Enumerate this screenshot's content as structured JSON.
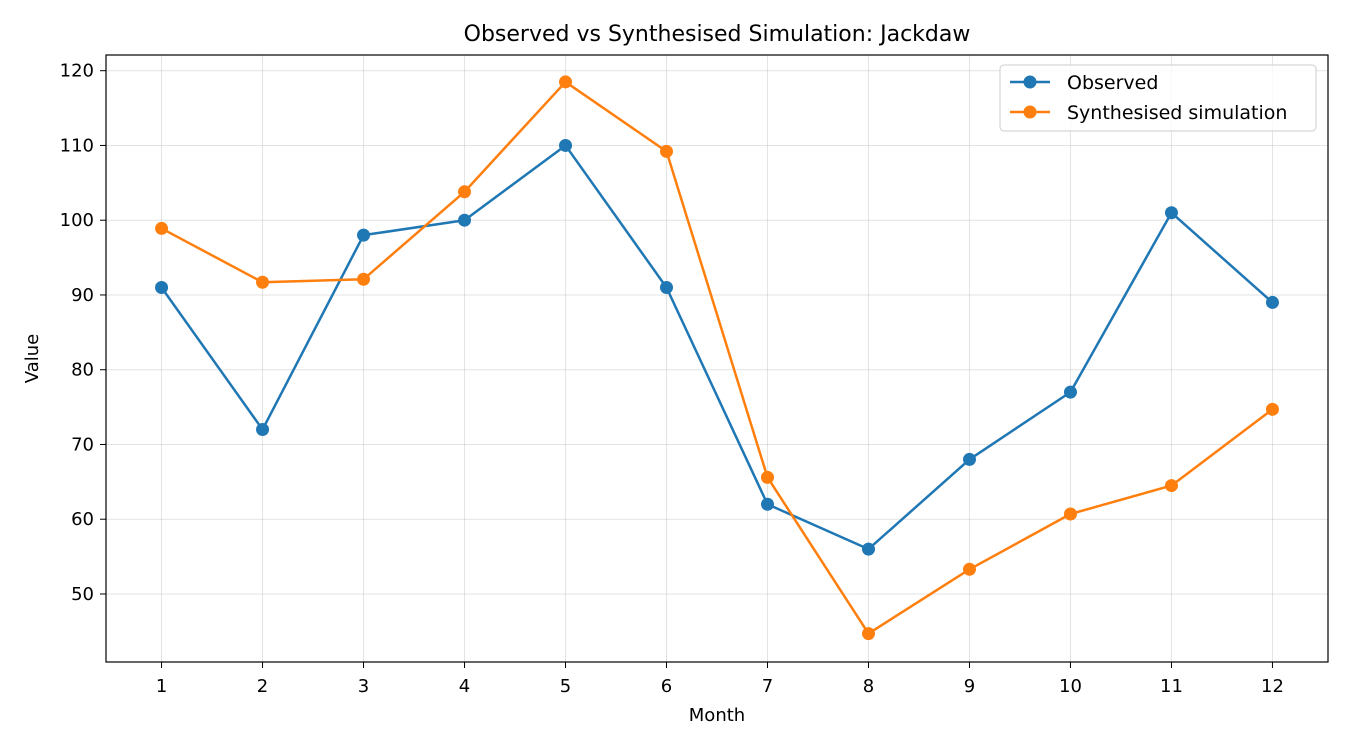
{
  "chart_data": {
    "type": "line",
    "title": "Observed vs Synthesised Simulation: Jackdaw",
    "xlabel": "Month",
    "ylabel": "Value",
    "x": [
      1,
      2,
      3,
      4,
      5,
      6,
      7,
      8,
      9,
      10,
      11,
      12
    ],
    "xlim": [
      0.45,
      12.55
    ],
    "ylim": [
      40.9,
      122.1
    ],
    "yticks": [
      50,
      60,
      70,
      80,
      90,
      100,
      110,
      120
    ],
    "grid": true,
    "legend_position": "top-right",
    "series": [
      {
        "name": "Observed",
        "color": "#1f77b4",
        "marker": "circle",
        "values": [
          91,
          72,
          98,
          100,
          110,
          91,
          62,
          56,
          68,
          77,
          101,
          89
        ]
      },
      {
        "name": "Synthesised simulation",
        "color": "#ff7f0e",
        "marker": "circle",
        "values": [
          98.9,
          91.7,
          92.1,
          103.8,
          118.5,
          109.2,
          65.6,
          44.7,
          53.3,
          60.7,
          64.5,
          74.7
        ]
      }
    ]
  }
}
